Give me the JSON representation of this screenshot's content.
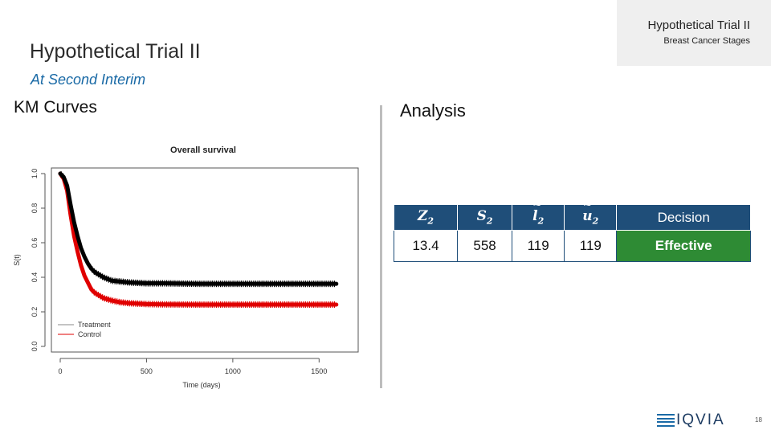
{
  "tab": {
    "title": "Hypothetical Trial II",
    "subtitle": "Breast Cancer Stages"
  },
  "slide": {
    "title": "Hypothetical Trial II",
    "subtitle": "At Second Interim",
    "left_heading": "KM Curves",
    "right_heading": "Analysis",
    "page_number": "18"
  },
  "table": {
    "headers": [
      {
        "sym": "Z",
        "sub": "2",
        "accent": false
      },
      {
        "sym": "S",
        "sub": "2",
        "accent": false
      },
      {
        "sym": "l",
        "sub": "2",
        "accent": true
      },
      {
        "sym": "u",
        "sub": "2",
        "accent": true
      },
      {
        "text": "Decision"
      }
    ],
    "row": [
      "13.4",
      "558",
      "119",
      "119",
      "Effective"
    ]
  },
  "logo": {
    "text": "IQVIA"
  },
  "colors": {
    "treatment": "#000000",
    "control": "#e00000",
    "header_bg": "#1f4e79",
    "effective_bg": "#2e8b34"
  },
  "chart_data": {
    "type": "line",
    "title": "Overall survival",
    "xlabel": "Time (days)",
    "ylabel": "S(t)",
    "xlim": [
      0,
      1600
    ],
    "ylim": [
      0,
      1.0
    ],
    "x_ticks": [
      0,
      500,
      1000,
      1500
    ],
    "y_ticks": [
      0.0,
      0.2,
      0.4,
      0.6,
      0.8,
      1.0
    ],
    "y_tick_labels": [
      "0.0",
      "0.2",
      "0.4",
      "0.6",
      "0.8",
      "1.0"
    ],
    "legend": "bottom-left",
    "series": [
      {
        "name": "Treatment",
        "color": "#000000",
        "x": [
          0,
          20,
          40,
          60,
          80,
          100,
          120,
          140,
          160,
          180,
          200,
          250,
          300,
          350,
          400,
          500,
          600,
          800,
          1000,
          1200,
          1400,
          1600
        ],
        "y": [
          1.0,
          0.98,
          0.93,
          0.82,
          0.72,
          0.64,
          0.57,
          0.52,
          0.48,
          0.45,
          0.43,
          0.4,
          0.38,
          0.375,
          0.37,
          0.365,
          0.365,
          0.362,
          0.362,
          0.362,
          0.362,
          0.362
        ]
      },
      {
        "name": "Control",
        "color": "#e00000",
        "x": [
          0,
          20,
          40,
          60,
          80,
          100,
          120,
          140,
          160,
          180,
          200,
          250,
          300,
          350,
          400,
          500,
          600,
          800,
          1000,
          1200,
          1400,
          1600
        ],
        "y": [
          1.0,
          0.97,
          0.9,
          0.76,
          0.64,
          0.55,
          0.47,
          0.41,
          0.37,
          0.33,
          0.31,
          0.28,
          0.265,
          0.255,
          0.25,
          0.245,
          0.243,
          0.242,
          0.242,
          0.242,
          0.242,
          0.242
        ]
      }
    ]
  }
}
